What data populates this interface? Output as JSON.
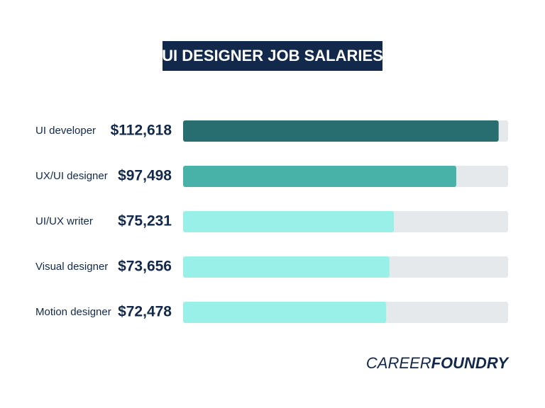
{
  "chart_data": {
    "type": "barh",
    "title": "UI DESIGNER JOB SALARIES",
    "categories": [
      "UI developer",
      "UX/UI designer",
      "UI/UX writer",
      "Visual designer",
      "Motion designer"
    ],
    "values": [
      112618,
      97498,
      75231,
      73656,
      72478
    ],
    "value_labels": [
      "$112,618",
      "$97,498",
      "$75,231",
      "$73,656",
      "$72,478"
    ],
    "colors": [
      "#286d6f",
      "#48b2a8",
      "#98f0e8",
      "#98f0e8",
      "#98f0e8"
    ],
    "track_color": "#e6e9eb",
    "xlim": [
      0,
      116000
    ],
    "brand": [
      "CAREER",
      "FOUNDRY"
    ]
  }
}
